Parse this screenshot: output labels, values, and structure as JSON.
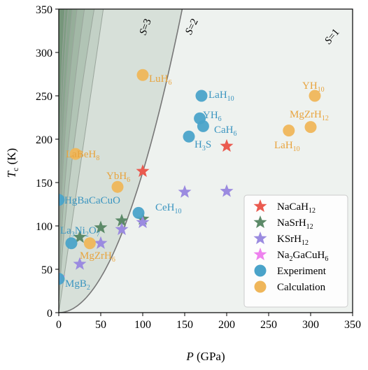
{
  "chart_data": {
    "type": "scatter",
    "title": "",
    "xlabel": {
      "main": "P",
      "unit": " (GPa)"
    },
    "ylabel": {
      "main": "T",
      "sub": "c",
      "unit": " (K)"
    },
    "xlim": [
      0,
      350
    ],
    "ylim": [
      0,
      350
    ],
    "xticks": [
      "0",
      "50",
      "100",
      "150",
      "200",
      "250",
      "300",
      "350"
    ],
    "yticks": [
      "0",
      "50",
      "100",
      "150",
      "200",
      "250",
      "300",
      "350"
    ],
    "grid": false,
    "legend_position": "lower-right",
    "background_contours": {
      "labels": [
        {
          "main": "S",
          "rest": "=3"
        },
        {
          "main": "S",
          "rest": "=2"
        },
        {
          "main": "S",
          "rest": "=1"
        }
      ],
      "color": "#3c6e47"
    },
    "series": [
      {
        "name": {
          "main": "NaCaH",
          "sub": "12"
        },
        "marker": "star",
        "color": "#ea5a4f",
        "points": [
          [
            100,
            163
          ],
          [
            200,
            192
          ]
        ]
      },
      {
        "name": {
          "main": "NaSrH",
          "sub": "12"
        },
        "marker": "star",
        "color": "#5c8a68",
        "points": [
          [
            25,
            87
          ],
          [
            50,
            98
          ],
          [
            75,
            106
          ],
          [
            100,
            108
          ]
        ]
      },
      {
        "name": {
          "main": "KSrH",
          "sub": "12"
        },
        "marker": "star",
        "color": "#9b8be0",
        "points": [
          [
            25,
            56
          ],
          [
            50,
            80
          ],
          [
            75,
            96
          ],
          [
            100,
            104
          ],
          [
            150,
            139
          ],
          [
            200,
            140
          ]
        ]
      },
      {
        "name": {
          "main": "Na",
          "sub": "2",
          "rest": "GaCuH",
          "sub2": "6"
        },
        "marker": "star",
        "color": "#ee82ee",
        "points": [
          [
            0,
            40
          ]
        ]
      },
      {
        "name": {
          "main": "Experiment"
        },
        "marker": "circle",
        "color": "#4aa3c9",
        "points": [
          [
            0,
            130
          ],
          [
            0,
            39
          ],
          [
            15,
            80
          ],
          [
            95,
            115
          ],
          [
            155,
            203
          ],
          [
            168,
            224
          ],
          [
            172,
            215
          ],
          [
            170,
            250
          ]
        ]
      },
      {
        "name": {
          "main": "Calculation"
        },
        "marker": "circle",
        "color": "#efb65a",
        "points": [
          [
            100,
            274
          ],
          [
            305,
            250
          ],
          [
            300,
            214
          ],
          [
            274,
            210
          ],
          [
            20,
            183
          ],
          [
            70,
            145
          ],
          [
            37,
            80
          ]
        ]
      }
    ],
    "annotations": [
      {
        "main": "LuH",
        "sub": "6",
        "color": "#e8a33c"
      },
      {
        "main": "LaH",
        "sub": "10",
        "color": "#3b95c0"
      },
      {
        "main": "YH",
        "sub": "6",
        "color": "#3b95c0"
      },
      {
        "main": "CaH",
        "sub": "6",
        "color": "#3b95c0"
      },
      {
        "main": "H",
        "sub": "3",
        "rest": "S",
        "color": "#3b95c0"
      },
      {
        "main": "YH",
        "sub": "10",
        "color": "#e8a33c"
      },
      {
        "main": "MgZrH",
        "sub": "12",
        "color": "#e8a33c"
      },
      {
        "main": "LaH",
        "sub": "10",
        "color": "#e8a33c"
      },
      {
        "main": "LaBeH",
        "sub": "8",
        "color": "#e8a33c"
      },
      {
        "main": "YbH",
        "sub": "6",
        "color": "#e8a33c"
      },
      {
        "main": "HgBaCaCuO",
        "color": "#3b95c0"
      },
      {
        "main": "CeH",
        "sub": "10",
        "color": "#3b95c0"
      },
      {
        "main": "La",
        "sub": "3",
        "rest": "Ni",
        "sub2": "2",
        "rest2": "O",
        "sub3": "7",
        "color": "#3b95c0"
      },
      {
        "main": "MgZrH",
        "sub": "6",
        "color": "#e8a33c"
      },
      {
        "main": "MgB",
        "sub": "2",
        "color": "#3b95c0"
      }
    ]
  }
}
